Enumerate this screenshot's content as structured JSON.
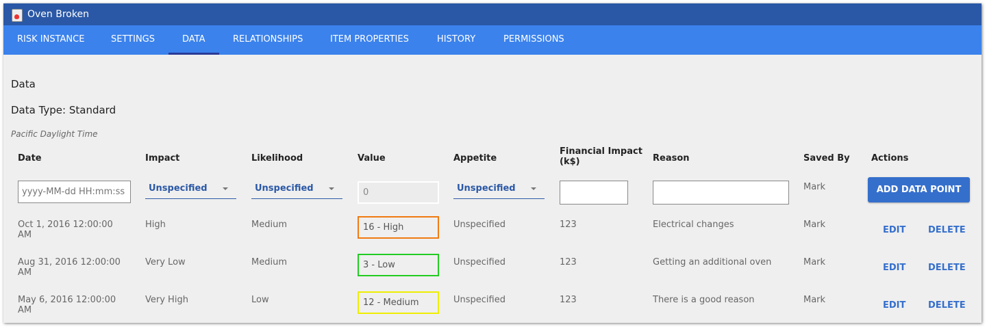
{
  "window": {
    "title": "Oven Broken",
    "icon": "risk-document-icon"
  },
  "tabs": [
    "RISK INSTANCE",
    "SETTINGS",
    "DATA",
    "RELATIONSHIPS",
    "ITEM PROPERTIES",
    "HISTORY",
    "PERMISSIONS"
  ],
  "active_tab": "DATA",
  "section_title": "Data",
  "data_type": "Data Type: Standard",
  "timezone": "Pacific Daylight Time",
  "columns": [
    "Date",
    "Impact",
    "Likelihood",
    "Value",
    "Appetite",
    "Financial Impact (k$)",
    "Reason",
    "Saved By",
    "Actions"
  ],
  "new_row": {
    "date_placeholder": "yyyy-MM-dd HH:mm:ss",
    "impact": "Unspecified",
    "likelihood": "Unspecified",
    "value": "0",
    "appetite": "Unspecified",
    "financial": "",
    "reason": "",
    "saved_by": "Mark",
    "add_label": "ADD DATA POINT"
  },
  "rows": [
    {
      "date": "Oct 1, 2016 12:00:00 AM",
      "impact": "High",
      "likelihood": "Medium",
      "value": "16 - High",
      "value_color": "#f07a10",
      "appetite": "Unspecified",
      "financial": "123",
      "reason": "Electrical changes",
      "saved_by": "Mark"
    },
    {
      "date": "Aug 31, 2016 12:00:00 AM",
      "impact": "Very Low",
      "likelihood": "Medium",
      "value": "3 - Low",
      "value_color": "#22cc22",
      "appetite": "Unspecified",
      "financial": "123",
      "reason": "Getting an additional oven",
      "saved_by": "Mark"
    },
    {
      "date": "May 6, 2016 12:00:00 AM",
      "impact": "Very High",
      "likelihood": "Low",
      "value": "12 - Medium",
      "value_color": "#eeee00",
      "appetite": "Unspecified",
      "financial": "123",
      "reason": "There is a good reason",
      "saved_by": "Mark"
    }
  ],
  "edit_label": "EDIT",
  "delete_label": "DELETE"
}
